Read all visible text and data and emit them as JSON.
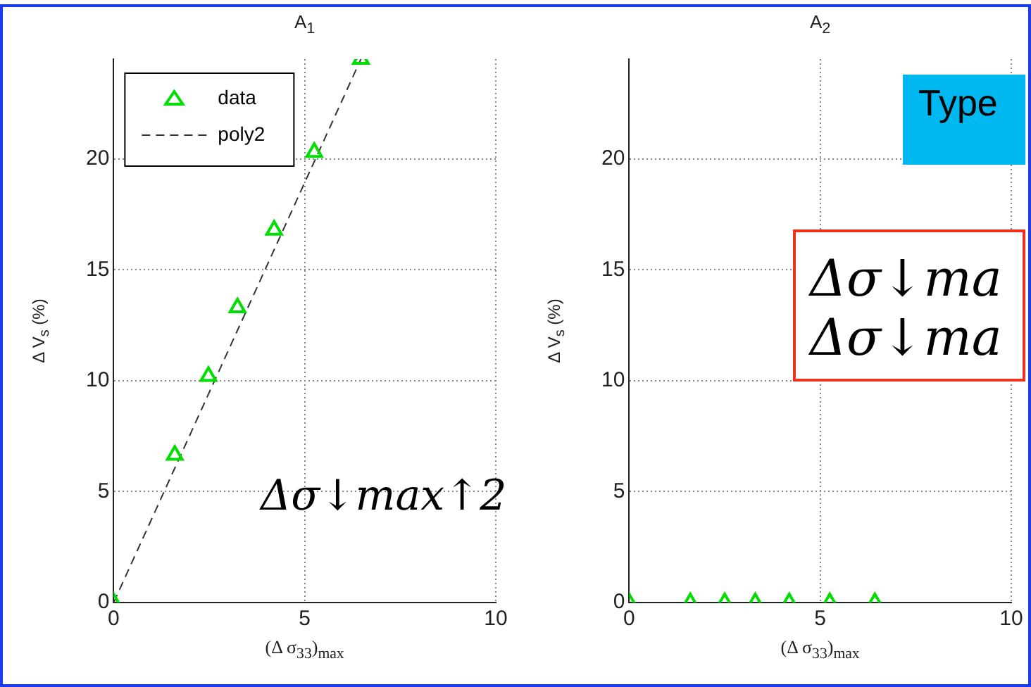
{
  "chart_data": [
    {
      "type": "scatter",
      "title": "A$_{1}$",
      "xlabel": "(Δ σ$_{33}$)$_{max}$",
      "ylabel": "Δ V$_{s}$ (%)",
      "xlim": [
        0,
        10
      ],
      "xticks": [
        0,
        5,
        10
      ],
      "ylim": [
        0,
        24.5
      ],
      "yticks": [
        0,
        5,
        10,
        15,
        20
      ],
      "grid": true,
      "legend": "top left",
      "series": [
        {
          "name": "data",
          "type": "scatter",
          "color": "#00dd00",
          "marker": "triangle",
          "x": [
            0,
            1.6,
            2.48,
            3.24,
            4.2,
            5.25,
            6.47
          ],
          "values": [
            0,
            6.65,
            10.2,
            13.3,
            16.8,
            20.3,
            24.5
          ]
        },
        {
          "name": "poly2",
          "type": "line",
          "color": "#333333",
          "marker": "none",
          "line_style": "dashed",
          "x": [
            0,
            6.47
          ],
          "values": [
            0,
            24.5
          ]
        }
      ],
      "annotations": [
        "Δσ↓max↑2"
      ]
    },
    {
      "type": "scatter",
      "title": "A$_{2}$",
      "xlabel": "(Δ σ$_{33}$)$_{max}$",
      "ylabel": "Δ V$_{s}$ (%)",
      "xlim": [
        0,
        10
      ],
      "xticks": [
        0,
        5,
        10
      ],
      "ylim": [
        0,
        24.5
      ],
      "yticks": [
        0,
        5,
        10,
        15,
        20
      ],
      "grid": true,
      "series": [
        {
          "color": "#00dd00",
          "marker": "triangle",
          "x": [
            0,
            1.6,
            2.5,
            3.3,
            4.19,
            5.25,
            6.43
          ],
          "values": [
            0,
            0,
            0,
            0,
            0,
            0,
            0
          ]
        }
      ],
      "annotations": [
        "Type",
        "Δσ↓ma",
        "Δσ↓ma"
      ]
    }
  ]
}
